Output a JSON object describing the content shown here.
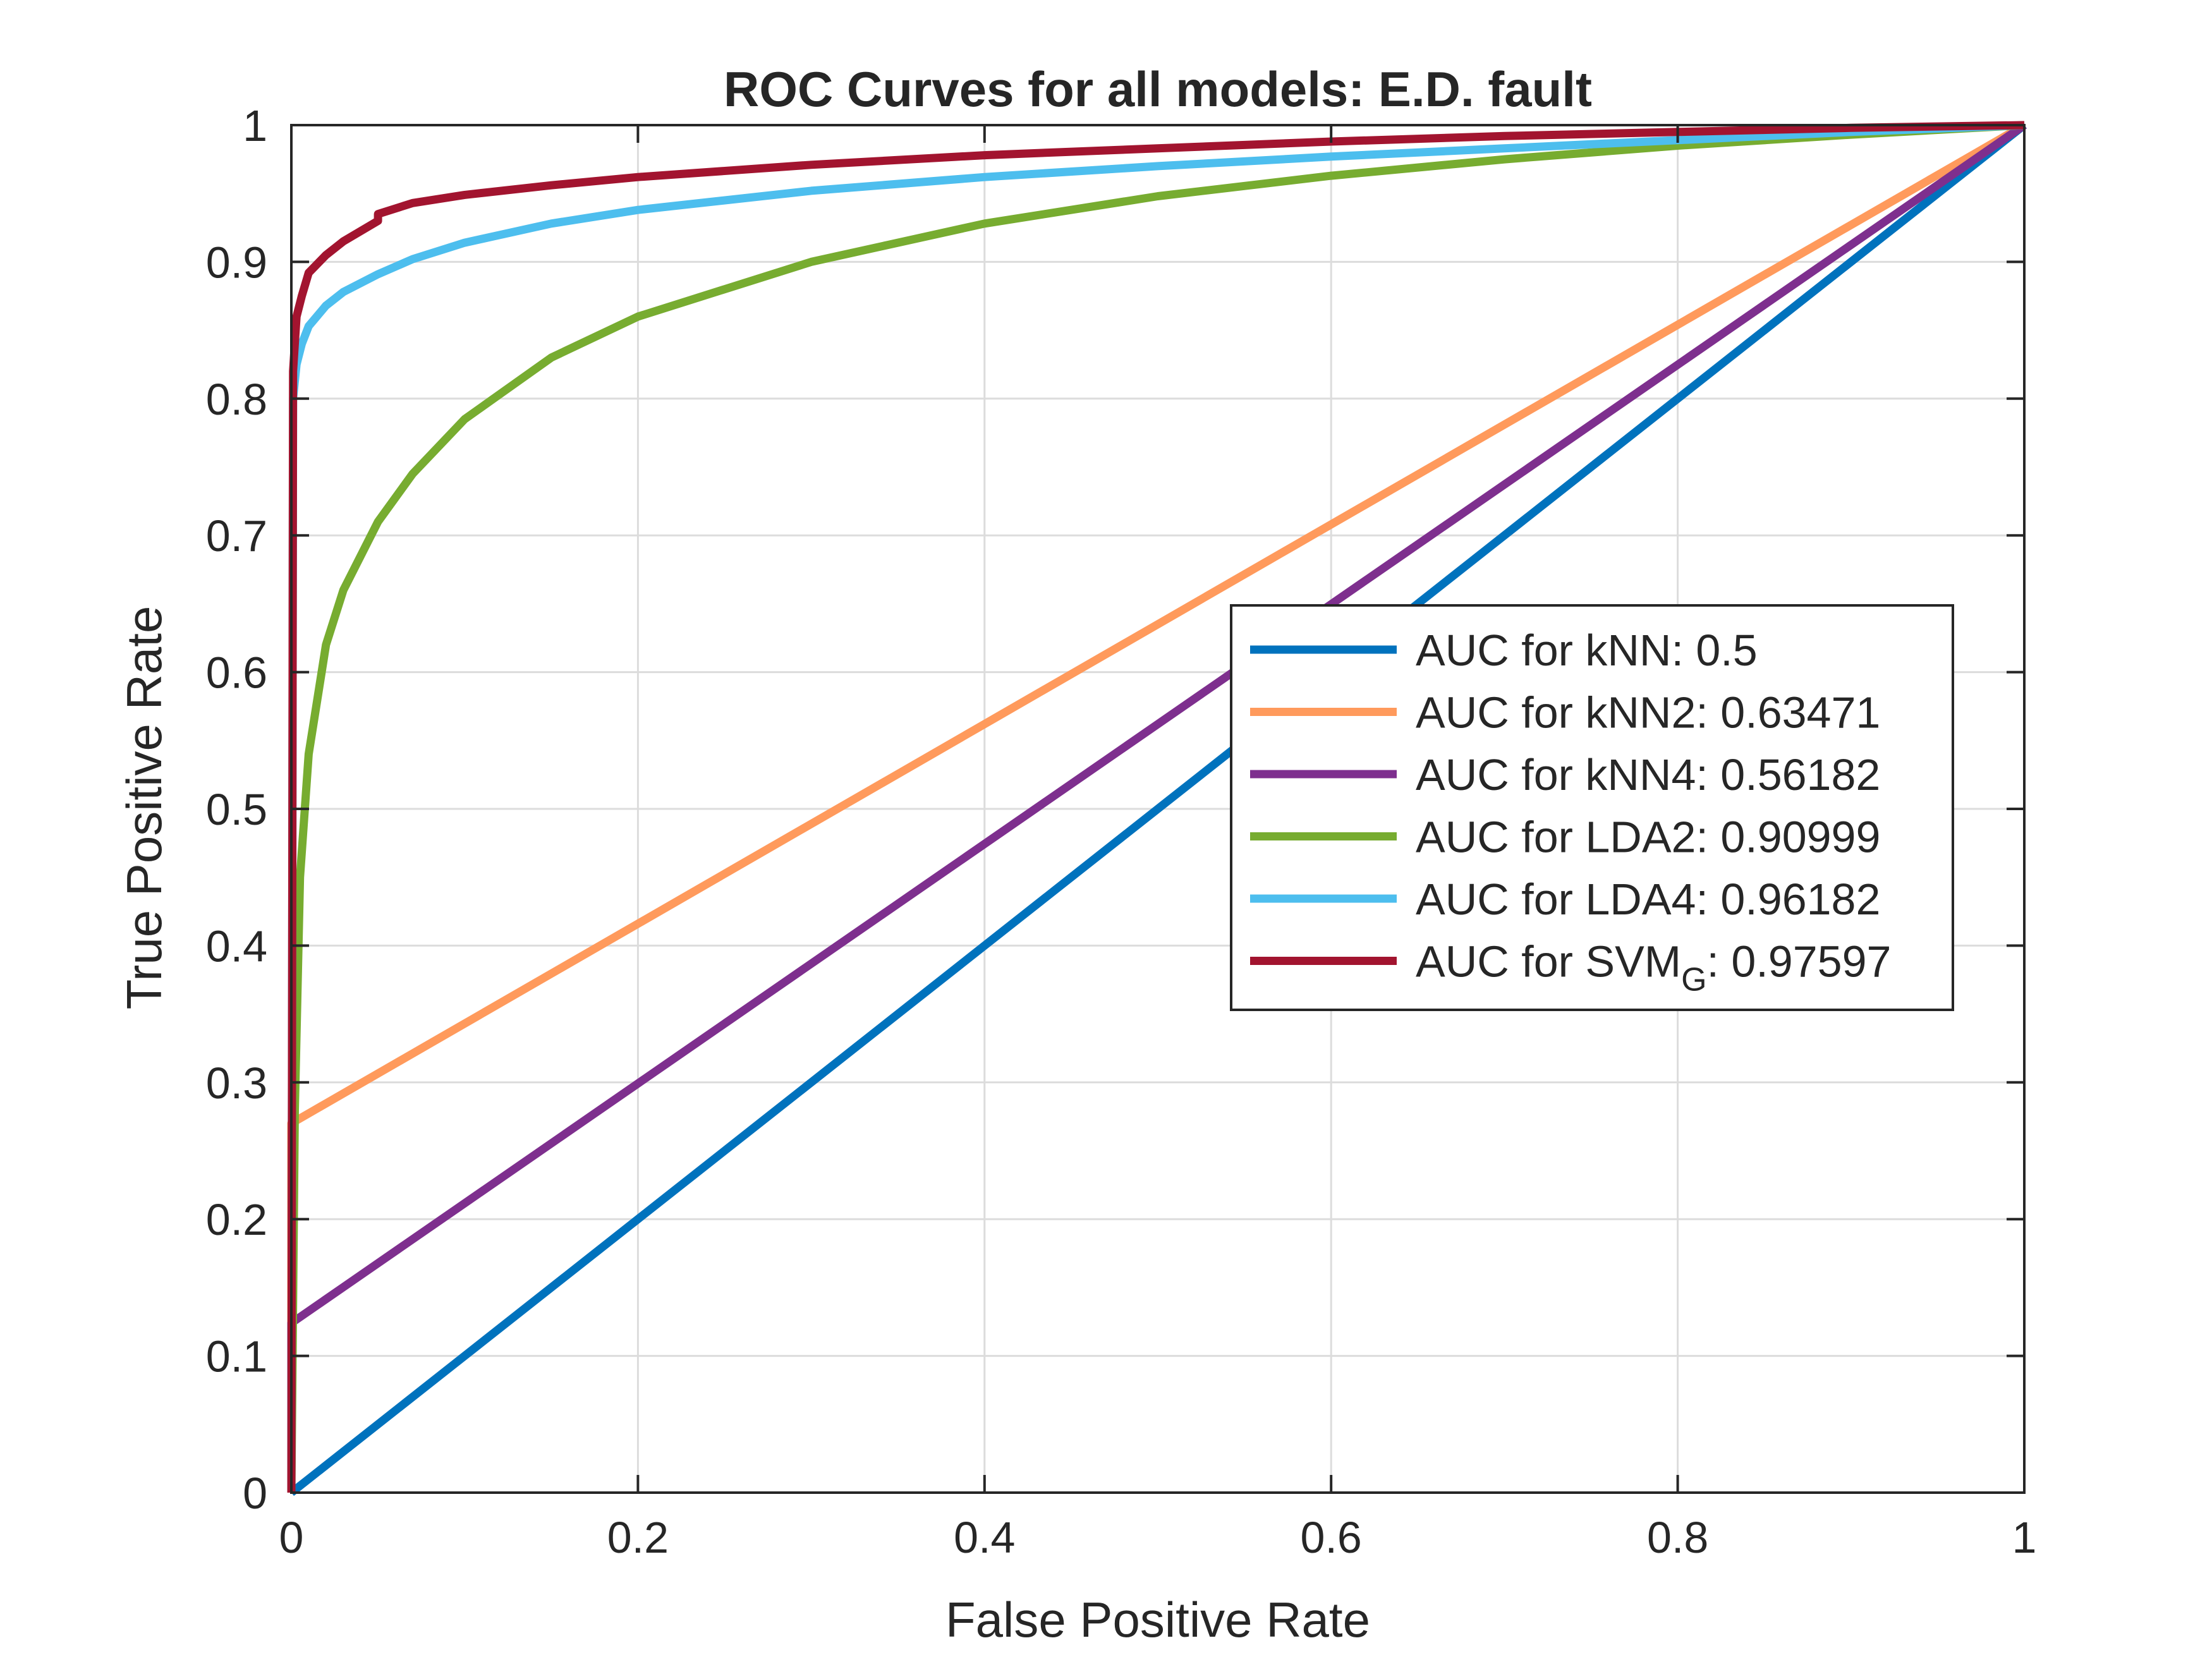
{
  "chart_data": {
    "type": "line",
    "title": "ROC Curves for all models: E.D. fault",
    "xlabel": "False Positive Rate",
    "ylabel": "True Positive Rate",
    "xlim": [
      0,
      1
    ],
    "ylim": [
      0,
      1
    ],
    "grid": true,
    "legend_position": "center-right",
    "x_ticks": [
      "0",
      "0.2",
      "0.4",
      "0.6",
      "0.8",
      "1"
    ],
    "y_ticks": [
      "0",
      "0.1",
      "0.2",
      "0.3",
      "0.4",
      "0.5",
      "0.6",
      "0.7",
      "0.8",
      "0.9",
      "1"
    ],
    "series": [
      {
        "name": "AUC for kNN: 0.5",
        "legend": {
          "text": "AUC for kNN: 0.5"
        },
        "color": "#0072BD",
        "x": [
          0,
          1
        ],
        "y": [
          0,
          1
        ]
      },
      {
        "name": "AUC for kNN2: 0.63471",
        "legend": {
          "text": "AUC for kNN2: 0.63471"
        },
        "color": "#FF9A5C",
        "x": [
          0,
          0,
          1
        ],
        "y": [
          0,
          0.27,
          1
        ]
      },
      {
        "name": "AUC for kNN4: 0.56182",
        "legend": {
          "text": "AUC for kNN4: 0.56182"
        },
        "color": "#7E2F8E",
        "x": [
          0,
          0,
          1
        ],
        "y": [
          0,
          0.124,
          1
        ]
      },
      {
        "name": "AUC for LDA2: 0.90999",
        "legend": {
          "text": "AUC for LDA2: 0.90999"
        },
        "color": "#77AC30",
        "x": [
          0,
          0.002,
          0.005,
          0.01,
          0.02,
          0.03,
          0.05,
          0.07,
          0.1,
          0.15,
          0.2,
          0.3,
          0.4,
          0.5,
          0.6,
          0.7,
          0.8,
          0.9,
          1
        ],
        "y": [
          0,
          0.28,
          0.45,
          0.54,
          0.62,
          0.66,
          0.71,
          0.745,
          0.785,
          0.83,
          0.86,
          0.9,
          0.928,
          0.948,
          0.963,
          0.975,
          0.985,
          0.993,
          1
        ]
      },
      {
        "name": "AUC for LDA4: 0.96182",
        "legend": {
          "text": "AUC for LDA4: 0.96182"
        },
        "color": "#4DBEEE",
        "x": [
          0,
          0.001,
          0.003,
          0.006,
          0.01,
          0.02,
          0.03,
          0.05,
          0.07,
          0.1,
          0.15,
          0.2,
          0.3,
          0.4,
          0.5,
          0.6,
          0.7,
          0.8,
          0.9,
          1
        ],
        "y": [
          0,
          0.8,
          0.825,
          0.84,
          0.853,
          0.868,
          0.878,
          0.891,
          0.902,
          0.914,
          0.928,
          0.938,
          0.952,
          0.962,
          0.97,
          0.977,
          0.983,
          0.989,
          0.995,
          1
        ]
      },
      {
        "name": "AUC for SVM_G: 0.97597",
        "legend": {
          "text": "AUC for SVM",
          "subscript": "G",
          "suffix": ": 0.97597"
        },
        "color": "#A2142F",
        "x": [
          0,
          0.001,
          0.003,
          0.006,
          0.01,
          0.02,
          0.03,
          0.05,
          0.05,
          0.07,
          0.1,
          0.15,
          0.2,
          0.3,
          0.4,
          0.5,
          0.6,
          0.7,
          0.8,
          0.9,
          1
        ],
        "y": [
          0,
          0.82,
          0.86,
          0.875,
          0.892,
          0.905,
          0.915,
          0.93,
          0.935,
          0.943,
          0.949,
          0.956,
          0.962,
          0.971,
          0.978,
          0.983,
          0.988,
          0.992,
          0.995,
          0.998,
          1
        ]
      }
    ]
  }
}
